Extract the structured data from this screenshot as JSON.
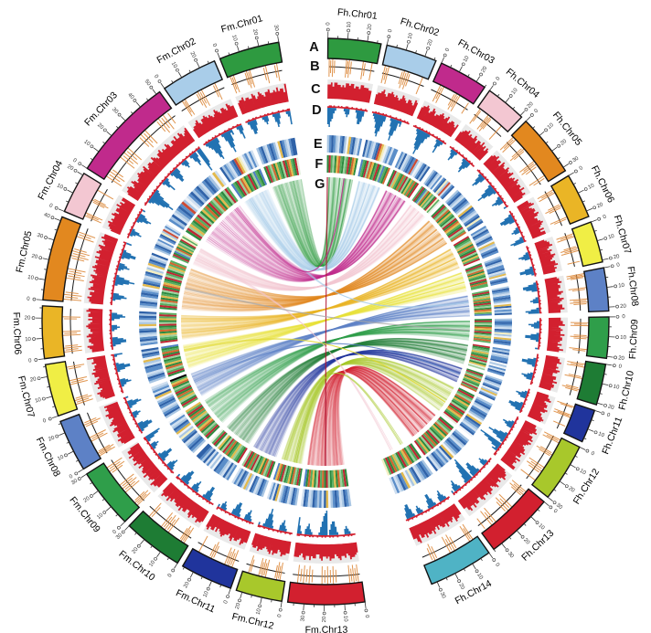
{
  "chart_data": {
    "type": "circos",
    "genomes": [
      "Fh",
      "Fm"
    ],
    "axis": {
      "major_tick_mb": 10,
      "minor_tick_mb": 5
    },
    "tracks": [
      {
        "id": "A",
        "label": "A",
        "name": "chromosome-ideogram"
      },
      {
        "id": "B",
        "label": "B",
        "name": "feature-tick-track"
      },
      {
        "id": "C",
        "label": "C",
        "name": "density-histogram"
      },
      {
        "id": "D",
        "label": "D",
        "name": "bidirectional-histogram"
      },
      {
        "id": "E",
        "label": "E",
        "name": "heatmap-outer"
      },
      {
        "id": "F",
        "label": "F",
        "name": "heatmap-inner"
      },
      {
        "id": "G",
        "label": "G",
        "name": "synteny-links"
      }
    ],
    "style": {
      "hist_bg": "#e9e9e9",
      "hist_color": "#d2202f",
      "dual_pos_color": "#d2202f",
      "dual_neg_color": "#2272b2",
      "tick_color": "#dd8a3c",
      "ideogram_outline": "#141414",
      "track_line_color": "#1c1c1c"
    },
    "palettes": {
      "track_e": [
        "#a9c6e3",
        "#5b8ec9",
        "#2f62a8",
        "#cfdff0",
        "#eef3f8",
        "#f3eec2",
        "#e2b94d",
        "#cc4a33"
      ],
      "track_f": [
        "#2c8a3e",
        "#57ad60",
        "#9ccf9b",
        "#e3f0dd",
        "#f3eec2",
        "#e2b94d",
        "#d1662f",
        "#bf2633",
        "#4f7fc4"
      ]
    },
    "chromosomes": [
      {
        "name": "Fh.Chr01",
        "genome": "Fh",
        "size_mb": 27,
        "color": "#2e9a40",
        "b_ticks": [
          3,
          6,
          10,
          14,
          38,
          41,
          44,
          48,
          72,
          76,
          90
        ],
        "c": "778688776768878867768877766",
        "d_pos": "233232232322332232232232232",
        "d_neg": "675421000001232000013554200",
        "e": "0121031204612031",
        "f": "0712056102170650"
      },
      {
        "name": "Fh.Chr02",
        "genome": "Fh",
        "size_mb": 26,
        "color": "#a9cde9",
        "b_ticks": [
          6,
          10,
          14,
          44,
          48,
          52,
          56,
          60,
          88
        ],
        "c": "56678657787676568765776587",
        "d_pos": "22323223232232223223223232",
        "d_neg": "01235786420001368641200000",
        "e": "2010312765401311",
        "f": "8107265017028106"
      },
      {
        "name": "Fh.Chr03",
        "genome": "Fh",
        "size_mb": 25,
        "color": "#c02a8c",
        "b_ticks": [
          18,
          22,
          26,
          54,
          58,
          62,
          66,
          90
        ],
        "c": "6778756875667876785677657",
        "d_pos": "2322323223232232232322322",
        "d_neg": "0001246797421000001352100",
        "e": "1023012170431202",
        "f": "0725106172051607"
      },
      {
        "name": "Fh.Chr04",
        "genome": "Fh",
        "size_mb": 21,
        "color": "#f3c7d2",
        "b_ticks": [
          8,
          12,
          34,
          38,
          42,
          46,
          78
        ],
        "c": "567786766875776867576",
        "d_pos": "223223232232232232322",
        "d_neg": "001243100000124532000",
        "e": "012031412507312",
        "f": "170826051207413"
      },
      {
        "name": "Fh.Chr05",
        "genome": "Fh",
        "size_mb": 32,
        "color": "#e2881f",
        "b_ticks": [
          4,
          7,
          10,
          28,
          31,
          34,
          58,
          61,
          64,
          68,
          88,
          92
        ],
        "c": "67786775876687678567687677686675",
        "d_pos": "23223223232232232322322323223223",
        "d_neg": "00013542000001357531000124320001",
        "e": "01203121046210312512",
        "f": "07126051027065107216"
      },
      {
        "name": "Fh.Chr06",
        "genome": "Fh",
        "size_mb": 23,
        "color": "#eab526",
        "b_ticks": [
          10,
          14,
          18,
          48,
          52,
          56,
          82,
          86
        ],
        "c": "66785677687566787657577",
        "d_pos": "22323223223232223223223",
        "d_neg": "00135542000012320001354",
        "e": "102130214603121",
        "f": "701250610720517"
      },
      {
        "name": "Fh.Chr07",
        "genome": "Fh",
        "size_mb": 21,
        "color": "#f0ee45",
        "b_ticks": [
          12,
          16,
          20,
          46,
          50,
          54,
          58,
          86
        ],
        "c": "567786576687657786766",
        "d_pos": "232232322322232232232",
        "d_neg": "000012432000001355310",
        "e": "012031123064121",
        "f": "071260510270611"
      },
      {
        "name": "Fh.Chr08",
        "genome": "Fh",
        "size_mb": 22,
        "color": "#5d81c6",
        "b_ticks": [
          5,
          8,
          11,
          14,
          40,
          44,
          68,
          72,
          76,
          80
        ],
        "c": "6778677668756876577866",
        "d_pos": "2232232322322323223223",
        "d_neg": "0135542000012320001354",
        "e": "0210312104623102",
        "f": "1702516071206518"
      },
      {
        "name": "Fh.Chr09",
        "genome": "Fh",
        "size_mb": 21,
        "color": "#2f9e4a",
        "b_ticks": [
          14,
          18,
          22,
          48,
          52,
          56,
          84,
          88
        ],
        "c": "667785676686776575686",
        "d_pos": "232232232322232232322",
        "d_neg": "001243200013553100001",
        "e": "012103215046121",
        "f": "071206517025161"
      },
      {
        "name": "Fh.Chr10",
        "genome": "Fh",
        "size_mb": 21,
        "color": "#1e7c34",
        "b_ticks": [
          8,
          12,
          16,
          42,
          46,
          72,
          76,
          80
        ],
        "c": "677866768755776867766",
        "d_pos": "223232232232322322232",
        "d_neg": "000135531000012432000",
        "e": "102301124041321",
        "f": "701251061720532"
      },
      {
        "name": "Fh.Chr11",
        "genome": "Fh",
        "size_mb": 17,
        "color": "#20349c",
        "b_ticks": [
          10,
          14,
          38,
          42,
          46,
          78
        ],
        "c": "66785677687566787",
        "d_pos": "22323223223232232",
        "d_neg": "00124320001355420",
        "e": "0120312406312",
        "f": "0712605102716"
      },
      {
        "name": "Fh.Chr12",
        "genome": "Fh",
        "size_mb": 30,
        "color": "#a8c82b",
        "b_ticks": [
          4,
          7,
          10,
          32,
          35,
          38,
          62,
          66,
          70,
          74,
          90
        ],
        "c": "667786577868765677867758676688",
        "d_pos": "232232232322322323223223232233",
        "d_neg": "000012432000013575310975312000",
        "e": "012031210462103124",
        "f": "071260510270651073"
      },
      {
        "name": "Fh.Chr13",
        "genome": "Fh",
        "size_mb": 35,
        "color": "#d2202f",
        "b_ticks": [
          6,
          9,
          12,
          15,
          38,
          42,
          46,
          50,
          72,
          76,
          80,
          92
        ],
        "c": "56778657668765778676687557768668755",
        "d_pos": "22323223222322323223232232232322323",
        "d_neg": "00012320000135542098753100001243201",
        "e": "01203121046231012032",
        "f": "07126051027061720517"
      },
      {
        "name": "Fh.Chr14",
        "genome": "Fh",
        "size_mb": 33,
        "color": "#4fb3c5",
        "b_ticks": [
          9,
          12,
          15,
          40,
          44,
          48,
          52,
          76,
          80,
          84
        ],
        "c": "667785676686776575686776867759866",
        "d_pos": "232232232322232232322322232232232",
        "d_neg": "001243200013553100001232001355420",
        "e": "012103215046120313",
        "f": "071206517025160714"
      },
      {
        "name": "Fm.Chr01",
        "genome": "Fm",
        "size_mb": 30,
        "color": "#2e9a40",
        "b_ticks": [
          5,
          8,
          11,
          32,
          35,
          38,
          41,
          66,
          70,
          86,
          90
        ],
        "c": "677867766875687657786676867759",
        "d_pos": "223223232232232322322232232233",
        "d_neg": "013554200001232000135420000125",
        "e": "012031210462103122",
        "f": "071260510270651073"
      },
      {
        "name": "Fm.Chr02",
        "genome": "Fm",
        "size_mb": 28,
        "color": "#a9cde9",
        "b_ticks": [
          14,
          17,
          20,
          44,
          48,
          52,
          56,
          80,
          84
        ],
        "c": "5667865778767656876577658766",
        "d_pos": "2232322323223222322322322322",
        "d_neg": "0123578642000136864120001352",
        "e": "2010312765401313",
        "f": "8107265017028108"
      },
      {
        "name": "Fm.Chr03",
        "genome": "Fm",
        "size_mb": 52,
        "color": "#c02a8c",
        "b_ticks": [
          4,
          7,
          10,
          13,
          28,
          31,
          34,
          37,
          40,
          56,
          59,
          62,
          65,
          80,
          83,
          86,
          89,
          94
        ],
        "c": "6778756875667877678567766876577867668755776866875678",
        "d_pos": "2322323223232232232322322323223223232232232232322323",
        "d_neg": "0001246797421000001352100013554200001232000135420976",
        "e": "10230121704312012031210463",
        "f": "07251061720516071260510271"
      },
      {
        "name": "Fm.Chr04",
        "genome": "Fm",
        "size_mb": 21,
        "color": "#f3c7d2",
        "b_ticks": [
          10,
          14,
          18,
          50,
          54,
          58,
          82
        ],
        "c": "567786766875776867577",
        "d_pos": "223223232232232232323",
        "d_neg": "001243100000124532001",
        "e": "012031412507313",
        "f": "170826051207414"
      },
      {
        "name": "Fm.Chr05",
        "genome": "Fm",
        "size_mb": 42,
        "color": "#e2881f",
        "b_ticks": [
          3,
          6,
          9,
          12,
          30,
          33,
          36,
          39,
          42,
          56,
          59,
          62,
          65,
          68,
          84,
          87,
          90
        ],
        "c": "677867758766876785676876776866876785676877",
        "d_pos": "232232232322322323223223232232232322322324",
        "d_neg": "000135420000013575310001243200013553100002",
        "e": "01203121046210312504612032",
        "f": "07126051027065107217025161"
      },
      {
        "name": "Fm.Chr06",
        "genome": "Fm",
        "size_mb": 26,
        "color": "#eab526",
        "b_ticks": [
          8,
          12,
          16,
          20,
          42,
          46,
          50,
          76,
          80
        ],
        "c": "66785677687566787657577687",
        "d_pos": "22323223223232223223223223",
        "d_neg": "00135542000012320001354200",
        "e": "1021302146031202",
        "f": "7012506107205171"
      },
      {
        "name": "Fm.Chr07",
        "genome": "Fm",
        "size_mb": 26,
        "color": "#f0ee45",
        "b_ticks": [
          10,
          14,
          18,
          22,
          52,
          56,
          60,
          84,
          88
        ],
        "c": "56778657668765778676657669",
        "d_pos": "23223232232223223223223224",
        "d_neg": "00001243200000135531000013",
        "e": "0120311230641202",
        "f": "0712605102706108"
      },
      {
        "name": "Fm.Chr08",
        "genome": "Fm",
        "size_mb": 26,
        "color": "#5d81c6",
        "b_ticks": [
          6,
          9,
          12,
          15,
          40,
          44,
          48,
          72,
          76,
          80
        ],
        "c": "67786776687568765778667670",
        "d_pos": "22322323223223232232223223",
        "d_neg": "01355420000123200013542001",
        "e": "0210312104623103",
        "f": "1702516071206519"
      },
      {
        "name": "Fm.Chr09",
        "genome": "Fm",
        "size_mb": 30,
        "color": "#2f9e4a",
        "b_ticks": [
          5,
          8,
          11,
          14,
          36,
          40,
          44,
          48,
          52,
          78,
          82,
          86,
          90
        ],
        "c": "667785676686776575686776867750",
        "d_pos": "232232232322232232322322232233",
        "d_neg": "001243200013553100001232001356",
        "e": "012103215046120314",
        "f": "071206517025160715"
      },
      {
        "name": "Fm.Chr10",
        "genome": "Fm",
        "size_mb": 30,
        "color": "#1e7c34",
        "b_ticks": [
          9,
          12,
          15,
          18,
          42,
          46,
          50,
          54,
          58,
          82,
          86
        ],
        "c": "677866768755776867766576867786",
        "d_pos": "223232232232322322232232232233",
        "d_neg": "000135531000012432000135542001",
        "e": "102301124041320122",
        "f": "701251061720530713"
      },
      {
        "name": "Fm.Chr11",
        "genome": "Fm",
        "size_mb": 26,
        "color": "#20349c",
        "b_ticks": [
          12,
          16,
          20,
          24,
          28,
          54,
          58,
          62,
          86
        ],
        "c": "66785677687566787657577687",
        "d_pos": "22323223223232223223223224",
        "d_neg": "00124320001355420000123201",
        "e": "0120312406312013",
        "f": "0712605102716072"
      },
      {
        "name": "Fm.Chr12",
        "genome": "Fm",
        "size_mb": 23,
        "color": "#a8c82b",
        "b_ticks": [
          12,
          16,
          20,
          24,
          46,
          50,
          54,
          58,
          62,
          82,
          86
        ],
        "c": "66778657786876567786776",
        "d_pos": "23223223232232232232233",
        "d_neg": "00001243200001357531001",
        "e": "012031210462313",
        "f": "071260510270658"
      },
      {
        "name": "Fm.Chr13",
        "genome": "Fm",
        "size_mb": 38,
        "color": "#d2202f",
        "b_ticks": [
          5,
          8,
          11,
          14,
          17,
          36,
          40,
          44,
          48,
          52,
          56,
          70,
          74,
          78,
          82,
          86,
          90
        ],
        "c": "56778657668765778676687557768668756777",
        "d_pos": "22323223222322323223232232232322322233",
        "d_neg": "00012320000135542098753100001243200136",
        "e": "0120312104623101203123",
        "f": "0712605102706172051608"
      }
    ],
    "links": [
      {
        "source": "Fm.Chr01",
        "target": "Fh.Chr01",
        "color": "#2e9a40",
        "s0": 0.03,
        "s1": 0.97,
        "t0": 0.04,
        "t1": 0.96,
        "weight": 3
      },
      {
        "source": "Fm.Chr02",
        "target": "Fh.Chr02",
        "color": "#a9cde9",
        "s0": 0.05,
        "s1": 0.95,
        "t0": 0.05,
        "t1": 0.95,
        "weight": 3
      },
      {
        "source": "Fm.Chr03",
        "target": "Fh.Chr03",
        "color": "#c02a8c",
        "s0": 0.06,
        "s1": 0.96,
        "t0": 0.03,
        "t1": 0.97,
        "weight": 3
      },
      {
        "source": "Fm.Chr04",
        "target": "Fh.Chr04",
        "color": "#f3c7d2",
        "s0": 0.05,
        "s1": 0.9,
        "t0": 0.05,
        "t1": 0.95,
        "weight": 3
      },
      {
        "source": "Fm.Chr05",
        "target": "Fh.Chr05",
        "color": "#e2881f",
        "s0": 0.03,
        "s1": 0.97,
        "t0": 0.03,
        "t1": 0.97,
        "weight": 3
      },
      {
        "source": "Fm.Chr06",
        "target": "Fh.Chr06",
        "color": "#eab526",
        "s0": 0.05,
        "s1": 0.95,
        "t0": 0.05,
        "t1": 0.95,
        "weight": 3
      },
      {
        "source": "Fm.Chr07",
        "target": "Fh.Chr07",
        "color": "#e8e23a",
        "s0": 0.05,
        "s1": 0.95,
        "t0": 0.05,
        "t1": 0.95,
        "weight": 3
      },
      {
        "source": "Fm.Chr08",
        "target": "Fh.Chr08",
        "color": "#5d81c6",
        "s0": 0.04,
        "s1": 0.96,
        "t0": 0.04,
        "t1": 0.96,
        "weight": 3
      },
      {
        "source": "Fm.Chr09",
        "target": "Fh.Chr09",
        "color": "#2f9e4a",
        "s0": 0.04,
        "s1": 0.96,
        "t0": 0.05,
        "t1": 0.95,
        "weight": 3
      },
      {
        "source": "Fm.Chr10",
        "target": "Fh.Chr10",
        "color": "#1e7c34",
        "s0": 0.05,
        "s1": 0.95,
        "t0": 0.05,
        "t1": 0.95,
        "weight": 3
      },
      {
        "source": "Fm.Chr11",
        "target": "Fh.Chr11",
        "color": "#20349c",
        "s0": 0.05,
        "s1": 0.95,
        "t0": 0.05,
        "t1": 0.95,
        "weight": 3
      },
      {
        "source": "Fm.Chr12",
        "target": "Fh.Chr12",
        "color": "#a8c82b",
        "s0": 0.06,
        "s1": 0.94,
        "t0": 0.05,
        "t1": 0.95,
        "weight": 3
      },
      {
        "source": "Fm.Chr13",
        "target": "Fh.Chr13",
        "color": "#d2202f",
        "s0": 0.04,
        "s1": 0.96,
        "t0": 0.04,
        "t1": 0.96,
        "weight": 3
      },
      {
        "source": "Fm.Chr13",
        "target": "Fh.Chr01",
        "color": "#b01030",
        "s0": 0.49,
        "s1": 0.51,
        "t0": 0.005,
        "t1": 0.02,
        "weight": 1
      },
      {
        "source": "Fm.Chr02",
        "target": "Fh.Chr08",
        "color": "#a9cde9",
        "s0": 0.2,
        "s1": 0.3,
        "t0": 0.3,
        "t1": 0.4,
        "weight": 1
      },
      {
        "source": "Fm.Chr03",
        "target": "Fh.Chr01",
        "color": "#c02a8c",
        "s0": 0.85,
        "s1": 0.9,
        "t0": 0.6,
        "t1": 0.65,
        "weight": 1
      },
      {
        "source": "Fm.Chr04",
        "target": "Fh.Chr14",
        "color": "#f3c7d2",
        "s0": 0.4,
        "s1": 0.5,
        "t0": 0.55,
        "t1": 0.65,
        "weight": 1
      },
      {
        "source": "Fm.Chr12",
        "target": "Fh.Chr14",
        "color": "#a8c82b",
        "s0": 0.3,
        "s1": 0.4,
        "t0": 0.2,
        "t1": 0.3,
        "weight": 1
      },
      {
        "source": "Fm.Chr08",
        "target": "Fh.Chr11",
        "color": "#5d81c6",
        "s0": 0.6,
        "s1": 0.65,
        "t0": 0.4,
        "t1": 0.45,
        "weight": 1
      },
      {
        "source": "Fm.Chr05",
        "target": "Fh.Chr09",
        "color": "#aaaaaa",
        "s0": 0.5,
        "s1": 0.52,
        "t0": 0.5,
        "t1": 0.52,
        "weight": 1
      },
      {
        "source": "Fm.Chr07",
        "target": "Fh.Chr12",
        "color": "#e0d830",
        "s0": 0.7,
        "s1": 0.75,
        "t0": 0.6,
        "t1": 0.65,
        "weight": 1
      }
    ]
  }
}
